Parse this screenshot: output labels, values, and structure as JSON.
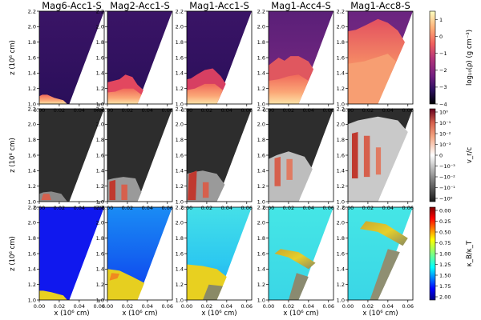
{
  "chart_data": {
    "type": "heatmap",
    "columns": [
      "Mag6-Acc1-S",
      "Mag2-Acc1-S",
      "Mag1-Acc1-S",
      "Mag1-Acc4-S",
      "Mag1-Acc8-S"
    ],
    "rows": [
      {
        "quantity": "density",
        "ylabel": "z (10⁶ cm)",
        "colorbar": {
          "label": "log₁₀(ρ) (g cm⁻³)",
          "ticks": [
            "−4",
            "−3",
            "−2",
            "−1",
            "0",
            "1"
          ],
          "range": [
            -4,
            1.5
          ],
          "colormap": "magma"
        }
      },
      {
        "quantity": "radial velocity",
        "ylabel": "z (10⁶ cm)",
        "colorbar": {
          "label": "v_r/c",
          "ticks": [
            "10⁰",
            "10⁻¹",
            "10⁻²",
            "10⁻³",
            "0",
            "−10⁻³",
            "−10⁻²",
            "−10⁻¹",
            "−10⁰"
          ],
          "range": [
            -1,
            1
          ],
          "scale": "symlog",
          "colormap": "RdGy"
        }
      },
      {
        "quantity": "kappa ratio",
        "ylabel": "z (10⁶ cm)",
        "colorbar": {
          "label": "κ_B/κ_T",
          "ticks": [
            "0.00",
            "0.25",
            "0.50",
            "0.75",
            "1.00",
            "1.25",
            "1.50",
            "1.75",
            "2.00"
          ],
          "range": [
            0,
            2
          ],
          "colormap": "jet"
        }
      }
    ],
    "xaxis": {
      "label": "x (10⁶ cm)",
      "range": [
        0.0,
        0.065
      ],
      "ticks": [
        "0.00",
        "0.02",
        "0.04",
        "0.06"
      ]
    },
    "yaxis": {
      "range": [
        1.0,
        2.2
      ],
      "ticks": [
        "1.0",
        "1.2",
        "1.4",
        "1.6",
        "1.8",
        "2.0",
        "2.2"
      ]
    },
    "colors": {
      "density_background": "#2d1160",
      "velocity_background": "#2d2d2d",
      "kappa_cyan": "#3ee6e6",
      "kappa_blue": "#0c1cf0",
      "kappa_yellow": "#e8d020"
    }
  }
}
